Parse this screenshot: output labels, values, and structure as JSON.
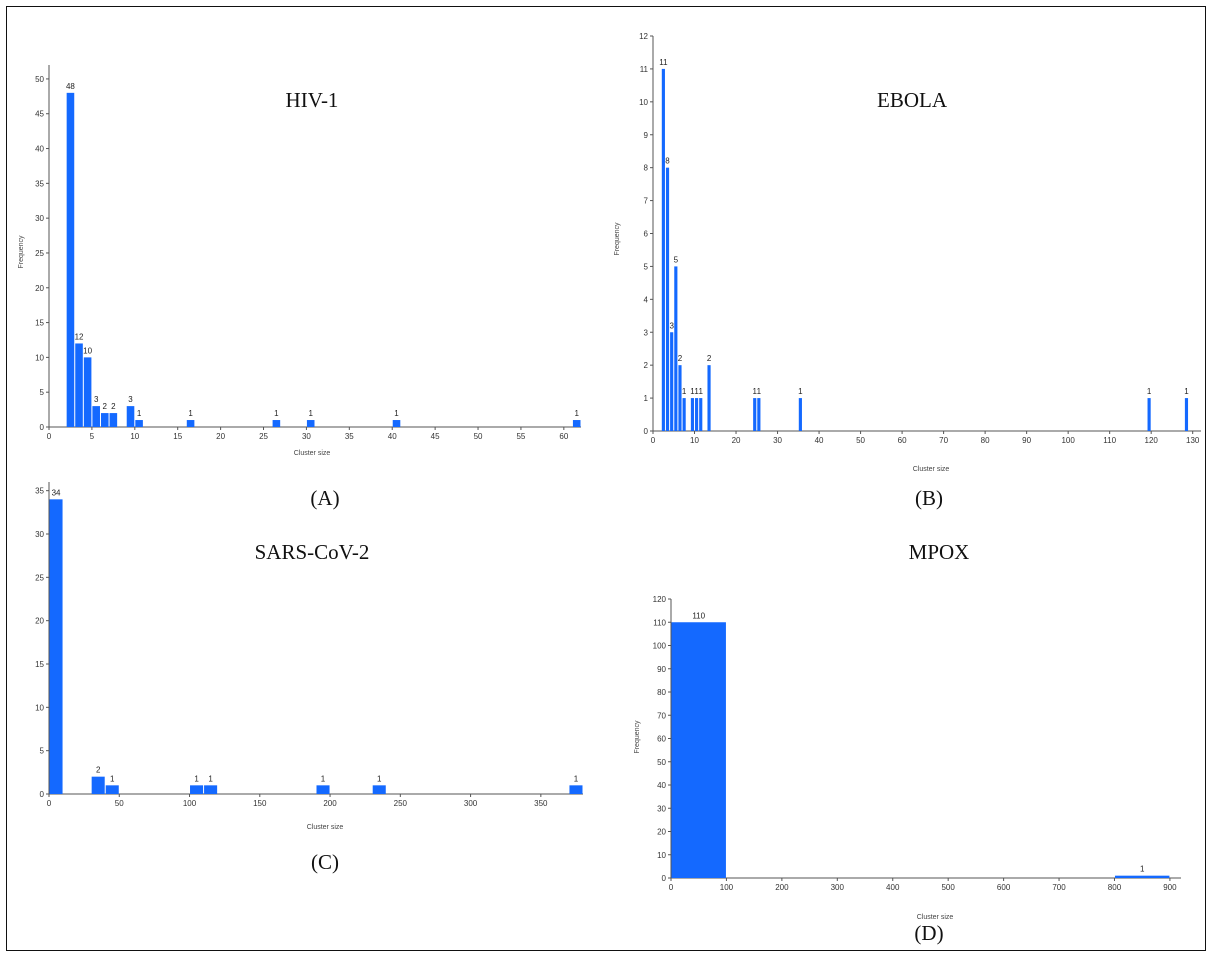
{
  "colors": {
    "bar": "#1469ff",
    "axis": "#555555",
    "text": "#222222"
  },
  "chart_data": [
    {
      "type": "bar",
      "title": "HIV-1",
      "caption": "(A)",
      "xlabel": "Cluster size",
      "ylabel": "Frequency",
      "xlim": [
        0,
        62
      ],
      "ylim": [
        0,
        52
      ],
      "xticks": [
        0,
        5,
        10,
        15,
        20,
        25,
        30,
        35,
        40,
        45,
        50,
        55,
        60
      ],
      "yticks": [
        0,
        5,
        10,
        15,
        20,
        25,
        30,
        35,
        40,
        45,
        50
      ],
      "bin_width": 1,
      "bars": [
        {
          "x": 2,
          "value": 48,
          "label": "48"
        },
        {
          "x": 3,
          "value": 12,
          "label": "12"
        },
        {
          "x": 4,
          "value": 10,
          "label": "10"
        },
        {
          "x": 5,
          "value": 3,
          "label": "3"
        },
        {
          "x": 6,
          "value": 2,
          "label": "2"
        },
        {
          "x": 7,
          "value": 2,
          "label": "2"
        },
        {
          "x": 9,
          "value": 3,
          "label": "3"
        },
        {
          "x": 10,
          "value": 1,
          "label": "1"
        },
        {
          "x": 16,
          "value": 1,
          "label": "1"
        },
        {
          "x": 26,
          "value": 1,
          "label": "1"
        },
        {
          "x": 30,
          "value": 1,
          "label": "1"
        },
        {
          "x": 40,
          "value": 1,
          "label": "1"
        },
        {
          "x": 61,
          "value": 1,
          "label": "1"
        }
      ]
    },
    {
      "type": "bar",
      "title": "EBOLA",
      "caption": "(B)",
      "xlabel": "Cluster size",
      "ylabel": "Frequency",
      "xlim": [
        0,
        132
      ],
      "ylim": [
        0,
        12
      ],
      "xticks": [
        0,
        10,
        20,
        30,
        40,
        50,
        60,
        70,
        80,
        90,
        100,
        110,
        120,
        130
      ],
      "yticks": [
        0,
        1,
        2,
        3,
        4,
        5,
        6,
        7,
        8,
        9,
        10,
        11,
        12
      ],
      "bin_width": 1,
      "bars": [
        {
          "x": 2,
          "value": 11,
          "label": "11"
        },
        {
          "x": 3,
          "value": 8,
          "label": "8"
        },
        {
          "x": 4,
          "value": 3,
          "label": "3"
        },
        {
          "x": 5,
          "value": 5,
          "label": "5"
        },
        {
          "x": 6,
          "value": 2,
          "label": "2"
        },
        {
          "x": 7,
          "value": 1,
          "label": "1"
        },
        {
          "x": 9,
          "value": 1,
          "label": "1"
        },
        {
          "x": 10,
          "value": 1,
          "label": "1"
        },
        {
          "x": 11,
          "value": 1,
          "label": "1"
        },
        {
          "x": 13,
          "value": 2,
          "label": "2"
        },
        {
          "x": 24,
          "value": 1,
          "label": "1"
        },
        {
          "x": 25,
          "value": 1,
          "label": "1"
        },
        {
          "x": 35,
          "value": 1,
          "label": "1"
        },
        {
          "x": 119,
          "value": 1,
          "label": "1"
        },
        {
          "x": 128,
          "value": 1,
          "label": "1"
        }
      ]
    },
    {
      "type": "bar",
      "title": "SARS-CoV-2",
      "caption": "(C)",
      "xlabel": "Cluster size",
      "ylabel": "",
      "xlim": [
        0,
        380
      ],
      "ylim": [
        0,
        36
      ],
      "xticks": [
        0,
        50,
        100,
        150,
        200,
        250,
        300,
        350
      ],
      "yticks": [
        0,
        5,
        10,
        15,
        20,
        25,
        30,
        35
      ],
      "bin_width": 10,
      "bars": [
        {
          "x": 0,
          "value": 34,
          "label": "34"
        },
        {
          "x": 30,
          "value": 2,
          "label": "2"
        },
        {
          "x": 40,
          "value": 1,
          "label": "1"
        },
        {
          "x": 100,
          "value": 1,
          "label": "1"
        },
        {
          "x": 110,
          "value": 1,
          "label": "1"
        },
        {
          "x": 190,
          "value": 1,
          "label": "1"
        },
        {
          "x": 230,
          "value": 1,
          "label": "1"
        },
        {
          "x": 370,
          "value": 1,
          "label": "1"
        }
      ]
    },
    {
      "type": "bar",
      "title": "MPOX",
      "caption": "(D)",
      "xlabel": "Cluster size",
      "ylabel": "Frequency",
      "xlim": [
        0,
        920
      ],
      "ylim": [
        0,
        120
      ],
      "xticks": [
        0,
        100,
        200,
        300,
        400,
        500,
        600,
        700,
        800,
        900
      ],
      "yticks": [
        0,
        10,
        20,
        30,
        40,
        50,
        60,
        70,
        80,
        90,
        100,
        110,
        120
      ],
      "bin_width": 100,
      "bars": [
        {
          "x": 0,
          "value": 110,
          "label": "110"
        },
        {
          "x": 800,
          "value": 1,
          "label": "1"
        }
      ]
    }
  ]
}
